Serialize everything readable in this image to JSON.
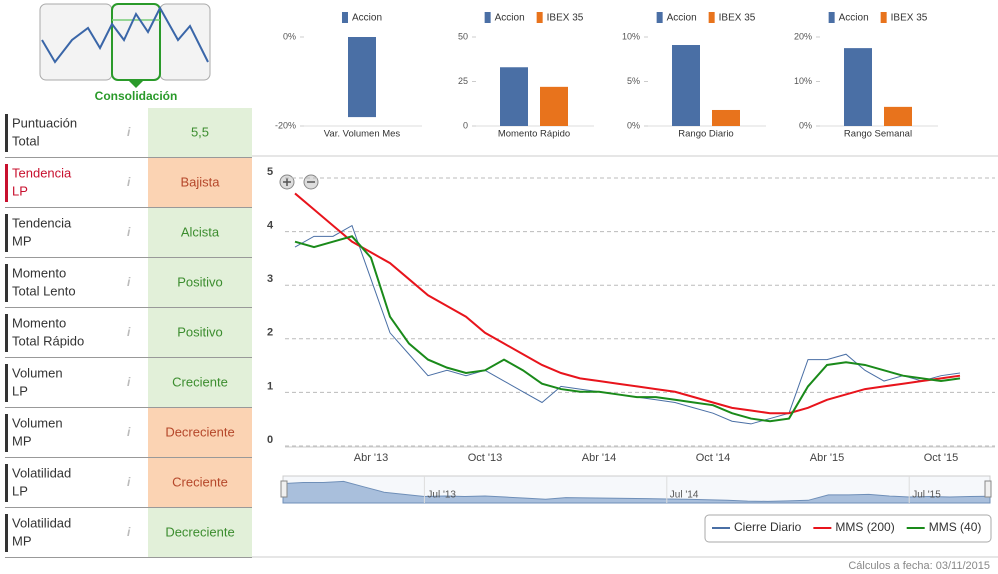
{
  "sidebar": {
    "logo_label": "Consolidación",
    "rows": [
      {
        "label": [
          "Puntuación",
          "Total"
        ],
        "value": "5,5",
        "label_color": "#333333",
        "bg": "#e2f0d9",
        "value_color": "#3c8d2f"
      },
      {
        "label": [
          "Tendencia",
          "LP"
        ],
        "value": "Bajista",
        "label_color": "#c8102e",
        "bg": "#fbd3b3",
        "value_color": "#b5472a"
      },
      {
        "label": [
          "Tendencia",
          "MP"
        ],
        "value": "Alcista",
        "label_color": "#333333",
        "bg": "#e2f0d9",
        "value_color": "#3c8d2f"
      },
      {
        "label": [
          "Momento",
          "Total Lento"
        ],
        "value": "Positivo",
        "label_color": "#333333",
        "bg": "#e2f0d9",
        "value_color": "#3c8d2f"
      },
      {
        "label": [
          "Momento",
          "Total Rápido"
        ],
        "value": "Positivo",
        "label_color": "#333333",
        "bg": "#e2f0d9",
        "value_color": "#3c8d2f"
      },
      {
        "label": [
          "Volumen",
          "LP"
        ],
        "value": "Creciente",
        "label_color": "#333333",
        "bg": "#e2f0d9",
        "value_color": "#3c8d2f"
      },
      {
        "label": [
          "Volumen",
          "MP"
        ],
        "value": "Decreciente",
        "label_color": "#333333",
        "bg": "#fbd3b3",
        "value_color": "#b5472a"
      },
      {
        "label": [
          "Volatilidad",
          "LP"
        ],
        "value": "Creciente",
        "label_color": "#333333",
        "bg": "#fbd3b3",
        "value_color": "#b5472a"
      },
      {
        "label": [
          "Volatilidad",
          "MP"
        ],
        "value": "Decreciente",
        "label_color": "#333333",
        "bg": "#e2f0d9",
        "value_color": "#3c8d2f"
      }
    ]
  },
  "chart_data": [
    {
      "type": "bar",
      "categories": [
        "Var. Volumen Mes"
      ],
      "series": [
        {
          "name": "Accion",
          "color": "#4a6fa5",
          "values": [
            -18
          ]
        }
      ],
      "ylim": [
        -20,
        0
      ],
      "yticks": [
        {
          "value": -20,
          "label": "-20%"
        },
        {
          "value": 0,
          "label": "0%"
        }
      ]
    },
    {
      "type": "bar",
      "categories": [
        "Momento Rápido"
      ],
      "series": [
        {
          "name": "Accion",
          "color": "#4a6fa5",
          "values": [
            33
          ]
        },
        {
          "name": "IBEX 35",
          "color": "#e8731c",
          "values": [
            22
          ]
        }
      ],
      "ylim": [
        0,
        50
      ],
      "yticks": [
        0,
        25,
        50
      ]
    },
    {
      "type": "bar",
      "categories": [
        "Rango Diario"
      ],
      "series": [
        {
          "name": "Accion",
          "color": "#4a6fa5",
          "values": [
            9.1
          ]
        },
        {
          "name": "IBEX 35",
          "color": "#e8731c",
          "values": [
            1.8
          ]
        }
      ],
      "ylim": [
        0,
        10
      ],
      "yticks": [
        {
          "value": 0,
          "label": "0%"
        },
        {
          "value": 5,
          "label": "5%"
        },
        {
          "value": 10,
          "label": "10%"
        }
      ]
    },
    {
      "type": "bar",
      "categories": [
        "Rango Semanal"
      ],
      "series": [
        {
          "name": "Accion",
          "color": "#4a6fa5",
          "values": [
            17.5
          ]
        },
        {
          "name": "IBEX 35",
          "color": "#e8731c",
          "values": [
            4.3
          ]
        }
      ],
      "ylim": [
        0,
        20
      ],
      "yticks": [
        {
          "value": 0,
          "label": "0%"
        },
        {
          "value": 10,
          "label": "10%"
        },
        {
          "value": 20,
          "label": "20%"
        }
      ]
    },
    {
      "type": "line",
      "categories": [
        null,
        null,
        null,
        null,
        "Abr '13",
        null,
        null,
        null,
        null,
        null,
        "Oct '13",
        null,
        null,
        null,
        null,
        null,
        "Abr '14",
        null,
        null,
        null,
        null,
        null,
        "Oct '14",
        null,
        null,
        null,
        null,
        null,
        "Abr '15",
        null,
        null,
        null,
        null,
        null,
        "Oct '15",
        null
      ],
      "series": [
        {
          "name": "Cierre Diario",
          "color": "#4a6fa5",
          "values": [
            3.6,
            3.8,
            3.8,
            4.0,
            3.0,
            2.0,
            1.6,
            1.2,
            1.3,
            1.2,
            1.3,
            1.1,
            0.9,
            0.7,
            1.0,
            0.95,
            0.9,
            0.85,
            0.8,
            0.75,
            0.7,
            0.6,
            0.5,
            0.35,
            0.3,
            0.4,
            0.5,
            1.5,
            1.5,
            1.6,
            1.3,
            1.1,
            1.2,
            1.1,
            1.2,
            1.25
          ]
        },
        {
          "name": "MMS (200)",
          "color": "#e8141c",
          "values": [
            4.6,
            4.3,
            4.0,
            3.7,
            3.5,
            3.3,
            3.0,
            2.7,
            2.5,
            2.3,
            2.0,
            1.8,
            1.6,
            1.4,
            1.25,
            1.15,
            1.1,
            1.05,
            1.0,
            0.95,
            0.9,
            0.8,
            0.7,
            0.6,
            0.55,
            0.5,
            0.5,
            0.6,
            0.75,
            0.85,
            0.95,
            1.0,
            1.05,
            1.1,
            1.15,
            1.2
          ]
        },
        {
          "name": "MMS (40)",
          "color": "#1a8a1a",
          "values": [
            3.7,
            3.6,
            3.7,
            3.8,
            3.4,
            2.3,
            1.8,
            1.5,
            1.35,
            1.25,
            1.3,
            1.5,
            1.3,
            1.05,
            0.95,
            0.9,
            0.9,
            0.85,
            0.8,
            0.8,
            0.75,
            0.7,
            0.65,
            0.5,
            0.4,
            0.35,
            0.4,
            1.0,
            1.4,
            1.45,
            1.4,
            1.3,
            1.2,
            1.15,
            1.1,
            1.15
          ]
        }
      ],
      "ylim": [
        0,
        5
      ],
      "yticks": [
        0,
        1,
        2,
        3,
        4,
        5
      ],
      "grid": true,
      "navigator_labels": [
        "Jul '13",
        "Jul '14",
        "Jul '15"
      ]
    }
  ],
  "footer": "Cálculos a fecha: 03/11/2015"
}
